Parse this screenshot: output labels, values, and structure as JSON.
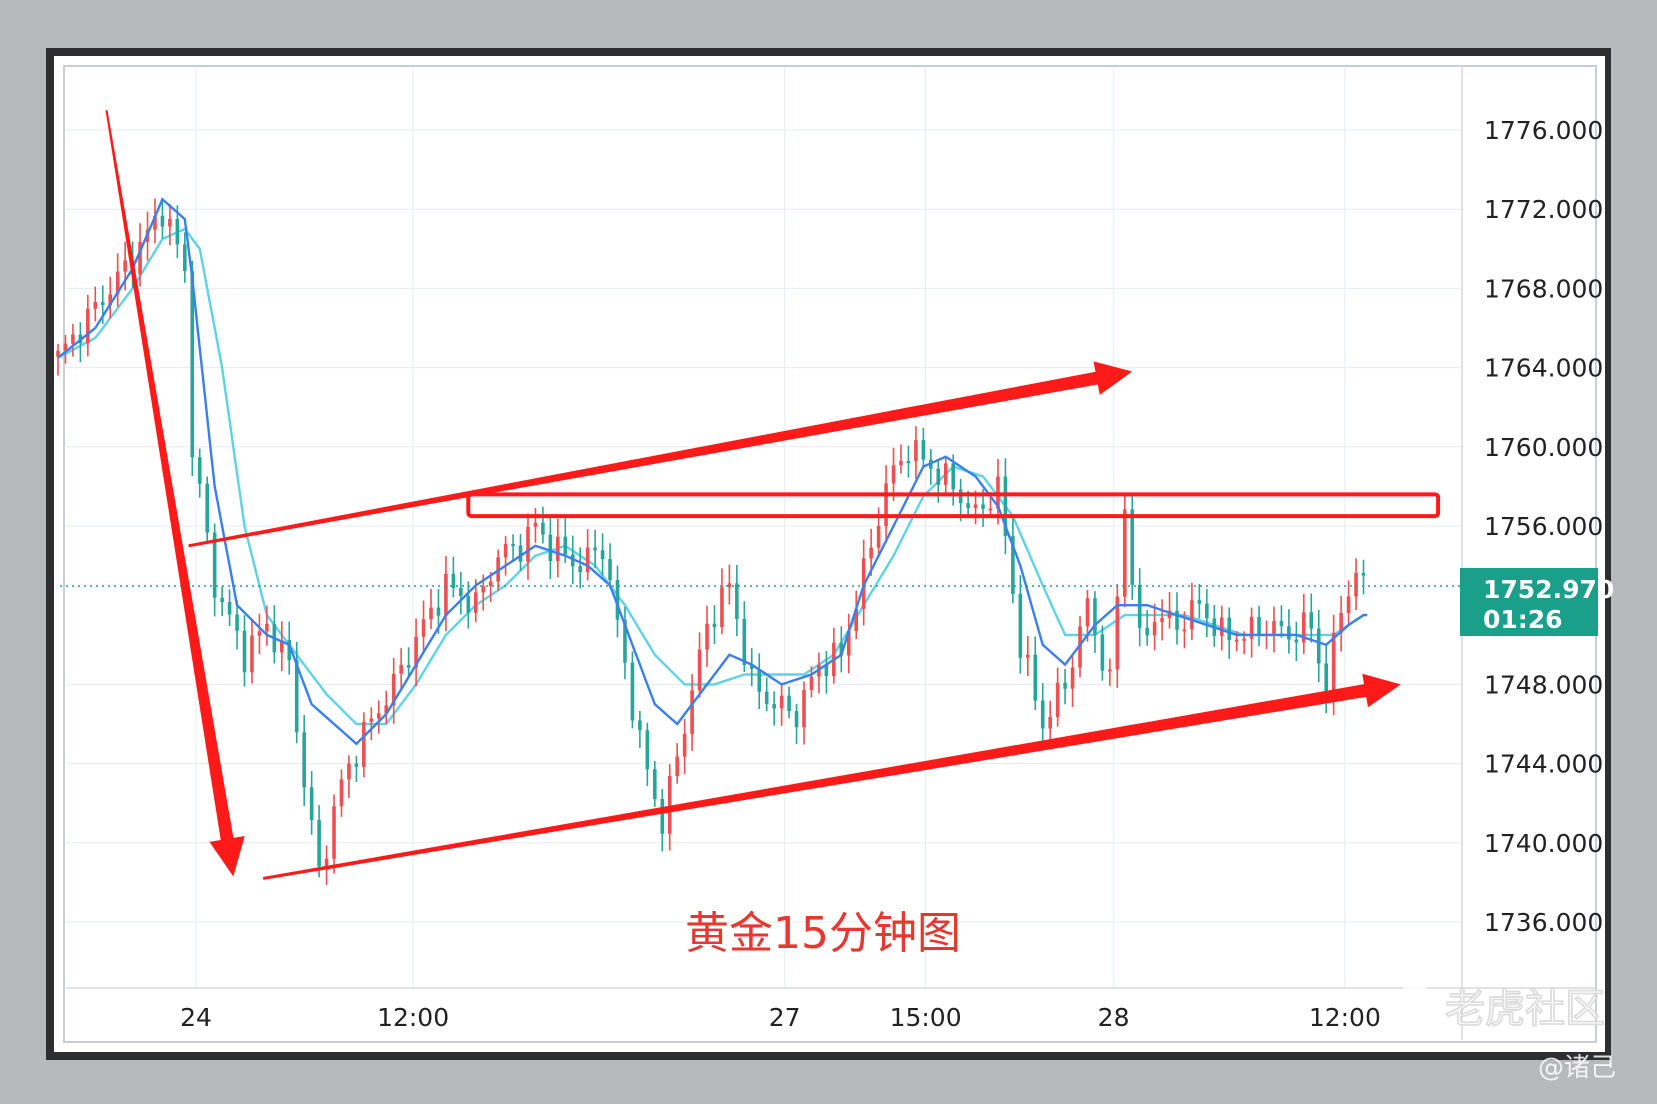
{
  "chart_data": {
    "type": "candlestick",
    "title": "黄金15分钟图",
    "ylim": [
      1733,
      1780
    ],
    "y_ticks": [
      1776,
      1772,
      1768,
      1764,
      1760,
      1756,
      1748,
      1744,
      1740,
      1736
    ],
    "y_tick_labels": [
      "1776.000",
      "1772.000",
      "1768.000",
      "1764.000",
      "1760.000",
      "1756.000",
      "1748.000",
      "1744.000",
      "1740.000",
      "1736.000"
    ],
    "x_ticks": [
      {
        "label": "24",
        "bar": 18.5
      },
      {
        "label": "12:00",
        "bar": 47.6
      },
      {
        "label": "27",
        "bar": 97.4
      },
      {
        "label": "15:00",
        "bar": 116.3
      },
      {
        "label": "28",
        "bar": 141.5
      },
      {
        "label": "12:00",
        "bar": 172.5
      }
    ],
    "current_price": {
      "value": 1752.97,
      "label": "1752.970",
      "countdown": "01:26"
    },
    "anchors_close": [
      [
        0,
        1764.5
      ],
      [
        5,
        1767
      ],
      [
        10,
        1769.5
      ],
      [
        14,
        1772
      ],
      [
        17,
        1769
      ],
      [
        18,
        1760
      ],
      [
        21,
        1753
      ],
      [
        25,
        1749.5
      ],
      [
        28,
        1751
      ],
      [
        31,
        1749
      ],
      [
        33,
        1743
      ],
      [
        35,
        1738.5
      ],
      [
        38,
        1743
      ],
      [
        41,
        1745.5
      ],
      [
        45,
        1748
      ],
      [
        49,
        1751
      ],
      [
        52,
        1753
      ],
      [
        56,
        1752
      ],
      [
        59,
        1754.5
      ],
      [
        62,
        1755
      ],
      [
        64,
        1756
      ],
      [
        66,
        1755
      ],
      [
        70,
        1754
      ],
      [
        73,
        1755
      ],
      [
        75,
        1751
      ],
      [
        78,
        1745
      ],
      [
        81,
        1741
      ],
      [
        84,
        1746
      ],
      [
        87,
        1751
      ],
      [
        90,
        1753
      ],
      [
        93,
        1748
      ],
      [
        96,
        1747
      ],
      [
        99,
        1746.5
      ],
      [
        102,
        1749
      ],
      [
        105,
        1749.5
      ],
      [
        109,
        1755
      ],
      [
        111,
        1758
      ],
      [
        114,
        1760
      ],
      [
        117,
        1759
      ],
      [
        120,
        1758
      ],
      [
        123,
        1756.5
      ],
      [
        126,
        1758
      ],
      [
        129,
        1750
      ],
      [
        132,
        1746
      ],
      [
        135,
        1748
      ],
      [
        138,
        1752
      ],
      [
        141,
        1748
      ],
      [
        143,
        1757
      ],
      [
        145,
        1750
      ],
      [
        147,
        1751.5
      ],
      [
        150,
        1751
      ],
      [
        153,
        1752
      ],
      [
        156,
        1750.5
      ],
      [
        159,
        1750.5
      ],
      [
        162,
        1751
      ],
      [
        165,
        1750.5
      ],
      [
        168,
        1751
      ],
      [
        170,
        1747.5
      ],
      [
        172,
        1752
      ],
      [
        174,
        1753.5
      ],
      [
        175,
        1753
      ]
    ],
    "ma_fast": [
      [
        0,
        1764.5
      ],
      [
        5,
        1766
      ],
      [
        10,
        1769
      ],
      [
        14,
        1772.5
      ],
      [
        17,
        1771.5
      ],
      [
        18,
        1768.5
      ],
      [
        21,
        1758
      ],
      [
        24,
        1752
      ],
      [
        28,
        1750.5
      ],
      [
        31,
        1750
      ],
      [
        34,
        1747
      ],
      [
        37,
        1746
      ],
      [
        40,
        1745
      ],
      [
        44,
        1746.5
      ],
      [
        48,
        1749
      ],
      [
        52,
        1751.5
      ],
      [
        56,
        1753
      ],
      [
        60,
        1754
      ],
      [
        64,
        1755
      ],
      [
        68,
        1754.5
      ],
      [
        71,
        1754
      ],
      [
        74,
        1753
      ],
      [
        77,
        1750
      ],
      [
        80,
        1747
      ],
      [
        83,
        1746
      ],
      [
        87,
        1748
      ],
      [
        90,
        1749.5
      ],
      [
        93,
        1749
      ],
      [
        97,
        1748
      ],
      [
        101,
        1748.5
      ],
      [
        105,
        1749.5
      ],
      [
        108,
        1753
      ],
      [
        112,
        1756
      ],
      [
        116,
        1759
      ],
      [
        119,
        1759.5
      ],
      [
        123,
        1758.5
      ],
      [
        126,
        1757
      ],
      [
        129,
        1754
      ],
      [
        132,
        1750
      ],
      [
        135,
        1749
      ],
      [
        139,
        1751
      ],
      [
        142,
        1752
      ],
      [
        146,
        1752
      ],
      [
        150,
        1751.5
      ],
      [
        154,
        1751
      ],
      [
        158,
        1750.5
      ],
      [
        162,
        1750.5
      ],
      [
        166,
        1750.5
      ],
      [
        170,
        1750
      ],
      [
        173,
        1751
      ],
      [
        175,
        1751.5
      ]
    ],
    "ma_slow": [
      [
        0,
        1764.5
      ],
      [
        5,
        1765.5
      ],
      [
        10,
        1768
      ],
      [
        14,
        1770.5
      ],
      [
        17,
        1771
      ],
      [
        19,
        1770
      ],
      [
        22,
        1764
      ],
      [
        25,
        1756
      ],
      [
        28,
        1751.5
      ],
      [
        32,
        1749.5
      ],
      [
        36,
        1747.5
      ],
      [
        40,
        1746
      ],
      [
        44,
        1746
      ],
      [
        48,
        1748
      ],
      [
        52,
        1750.5
      ],
      [
        56,
        1752
      ],
      [
        60,
        1753
      ],
      [
        64,
        1754.5
      ],
      [
        68,
        1755
      ],
      [
        72,
        1754
      ],
      [
        76,
        1752
      ],
      [
        80,
        1749.5
      ],
      [
        84,
        1748
      ],
      [
        88,
        1748
      ],
      [
        92,
        1748.5
      ],
      [
        96,
        1748.5
      ],
      [
        100,
        1748.5
      ],
      [
        104,
        1749.5
      ],
      [
        108,
        1752
      ],
      [
        112,
        1754.5
      ],
      [
        116,
        1757.5
      ],
      [
        120,
        1759
      ],
      [
        124,
        1758.5
      ],
      [
        128,
        1756.5
      ],
      [
        132,
        1753
      ],
      [
        135,
        1750.5
      ],
      [
        139,
        1750.5
      ],
      [
        143,
        1751.5
      ],
      [
        147,
        1751.5
      ],
      [
        151,
        1751.5
      ],
      [
        155,
        1751
      ],
      [
        159,
        1750.5
      ],
      [
        163,
        1750.5
      ],
      [
        167,
        1750.5
      ],
      [
        171,
        1750.5
      ],
      [
        175,
        1751.5
      ]
    ],
    "annotations": [
      {
        "type": "arrow",
        "from": [
          6.5,
          1777
        ],
        "to": [
          23.5,
          1738.3
        ],
        "color": "#ff1a1a"
      },
      {
        "type": "trendline-arrow",
        "from": [
          17.5,
          1755
        ],
        "to": [
          144,
          1763.8
        ],
        "color": "#ff1a1a"
      },
      {
        "type": "trendline-arrow",
        "from": [
          27.5,
          1738.2
        ],
        "to": [
          180,
          1748
        ],
        "color": "#ff1a1a"
      },
      {
        "type": "rectangle",
        "from": [
          55,
          1757.6
        ],
        "to": [
          185,
          1756.5
        ],
        "color": "#ff1a1a"
      }
    ]
  },
  "watermark": {
    "brand": "老虎社区",
    "author": "@诸己"
  },
  "colors": {
    "up": "#ef4f4f",
    "down": "#26a69a",
    "ma_fast": "#3a7ff0",
    "ma_slow": "#5ed3e8",
    "annotation": "#ff1a1a",
    "price_label_bg": "#1aa08a",
    "grid": "#e6ecf2"
  }
}
